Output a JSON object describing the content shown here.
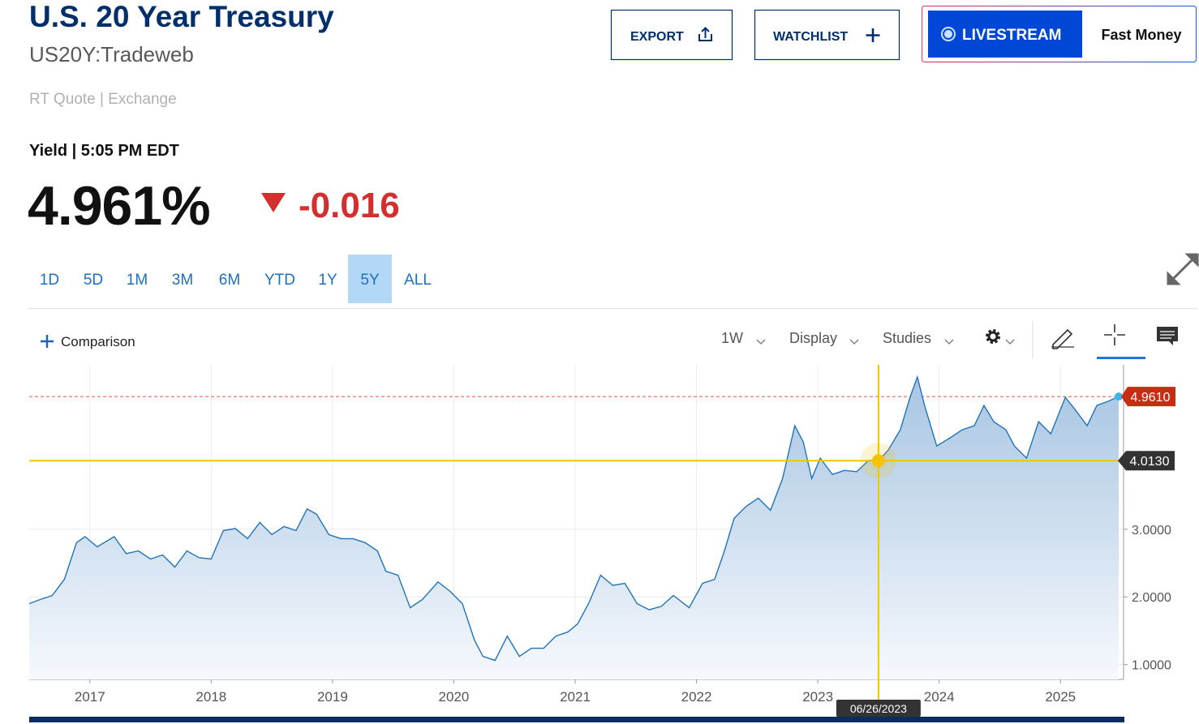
{
  "header": {
    "title": "U.S. 20 Year Treasury",
    "symbol": "US20Y:Tradeweb",
    "source": "RT Quote | Exchange"
  },
  "buttons": {
    "export": "EXPORT",
    "watchlist": "WATCHLIST",
    "livestream": "LIVESTREAM",
    "show": "Fast Money"
  },
  "quote": {
    "label": "Yield | 5:05 PM EDT",
    "price": "4.961%",
    "change": "-0.016"
  },
  "ranges": [
    "1D",
    "5D",
    "1M",
    "3M",
    "6M",
    "YTD",
    "1Y",
    "5Y",
    "ALL"
  ],
  "active_range": "5Y",
  "toolbar": {
    "comparison": "Comparison",
    "interval": "1W",
    "display": "Display",
    "studies": "Studies"
  },
  "chart": {
    "type": "line",
    "color": "#1f74b8",
    "x": [
      2016.5,
      2016.59,
      2016.69,
      2016.79,
      2016.89,
      2016.96,
      2017.06,
      2017.2,
      2017.3,
      2017.4,
      2017.5,
      2017.6,
      2017.7,
      2017.8,
      2017.9,
      2018.0,
      2018.1,
      2018.2,
      2018.3,
      2018.4,
      2018.5,
      2018.6,
      2018.7,
      2018.79,
      2018.87,
      2018.97,
      2019.07,
      2019.17,
      2019.27,
      2019.37,
      2019.44,
      2019.54,
      2019.64,
      2019.74,
      2019.87,
      2019.97,
      2020.07,
      2020.17,
      2020.24,
      2020.34,
      2020.44,
      2020.54,
      2020.64,
      2020.74,
      2020.84,
      2020.94,
      2021.02,
      2021.11,
      2021.21,
      2021.31,
      2021.41,
      2021.51,
      2021.61,
      2021.71,
      2021.81,
      2021.94,
      2022.05,
      2022.15,
      2022.23,
      2022.31,
      2022.41,
      2022.51,
      2022.61,
      2022.71,
      2022.81,
      2022.88,
      2022.95,
      2023.02,
      2023.12,
      2023.22,
      2023.32,
      2023.42,
      2023.5,
      2023.58,
      2023.68,
      2023.76,
      2023.82,
      2023.88,
      2023.98,
      2024.09,
      2024.19,
      2024.29,
      2024.37,
      2024.45,
      2024.55,
      2024.62,
      2024.72,
      2024.82,
      2024.92,
      2025.04,
      2025.12,
      2025.22,
      2025.3,
      2025.39,
      2025.48
    ],
    "values": [
      1.9,
      1.96,
      2.02,
      2.26,
      2.8,
      2.89,
      2.74,
      2.89,
      2.64,
      2.68,
      2.56,
      2.62,
      2.44,
      2.68,
      2.58,
      2.56,
      2.98,
      3.01,
      2.86,
      3.1,
      2.92,
      3.04,
      2.98,
      3.3,
      3.22,
      2.92,
      2.86,
      2.86,
      2.8,
      2.68,
      2.38,
      2.32,
      1.84,
      1.96,
      2.22,
      2.08,
      1.9,
      1.36,
      1.12,
      1.06,
      1.42,
      1.12,
      1.24,
      1.24,
      1.42,
      1.48,
      1.6,
      1.9,
      2.32,
      2.17,
      2.2,
      1.9,
      1.81,
      1.86,
      2.02,
      1.84,
      2.2,
      2.26,
      2.68,
      3.16,
      3.34,
      3.46,
      3.28,
      3.75,
      4.53,
      4.29,
      3.75,
      4.05,
      3.81,
      3.87,
      3.85,
      4.02,
      4.013,
      4.17,
      4.47,
      4.95,
      5.25,
      4.83,
      4.23,
      4.35,
      4.47,
      4.53,
      4.83,
      4.59,
      4.47,
      4.23,
      4.05,
      4.59,
      4.41,
      4.95,
      4.77,
      4.53,
      4.83,
      4.89,
      4.961
    ],
    "xlim": [
      2016.5,
      2025.52
    ],
    "ylim": [
      0.78,
      5.43
    ],
    "xticks": [
      2017,
      2018,
      2019,
      2020,
      2021,
      2022,
      2023,
      2024,
      2025
    ],
    "yticks": [
      {
        "value": 1,
        "label": "1.0000"
      },
      {
        "value": 2,
        "label": "2.0000"
      },
      {
        "value": 3,
        "label": "3.0000"
      }
    ],
    "grid": true,
    "last": {
      "value": 4.961,
      "label": "4.9610"
    },
    "crosshair": {
      "x": 2023.5,
      "value": 4.013,
      "label": "4.0130",
      "date": "06/26/2023"
    }
  }
}
